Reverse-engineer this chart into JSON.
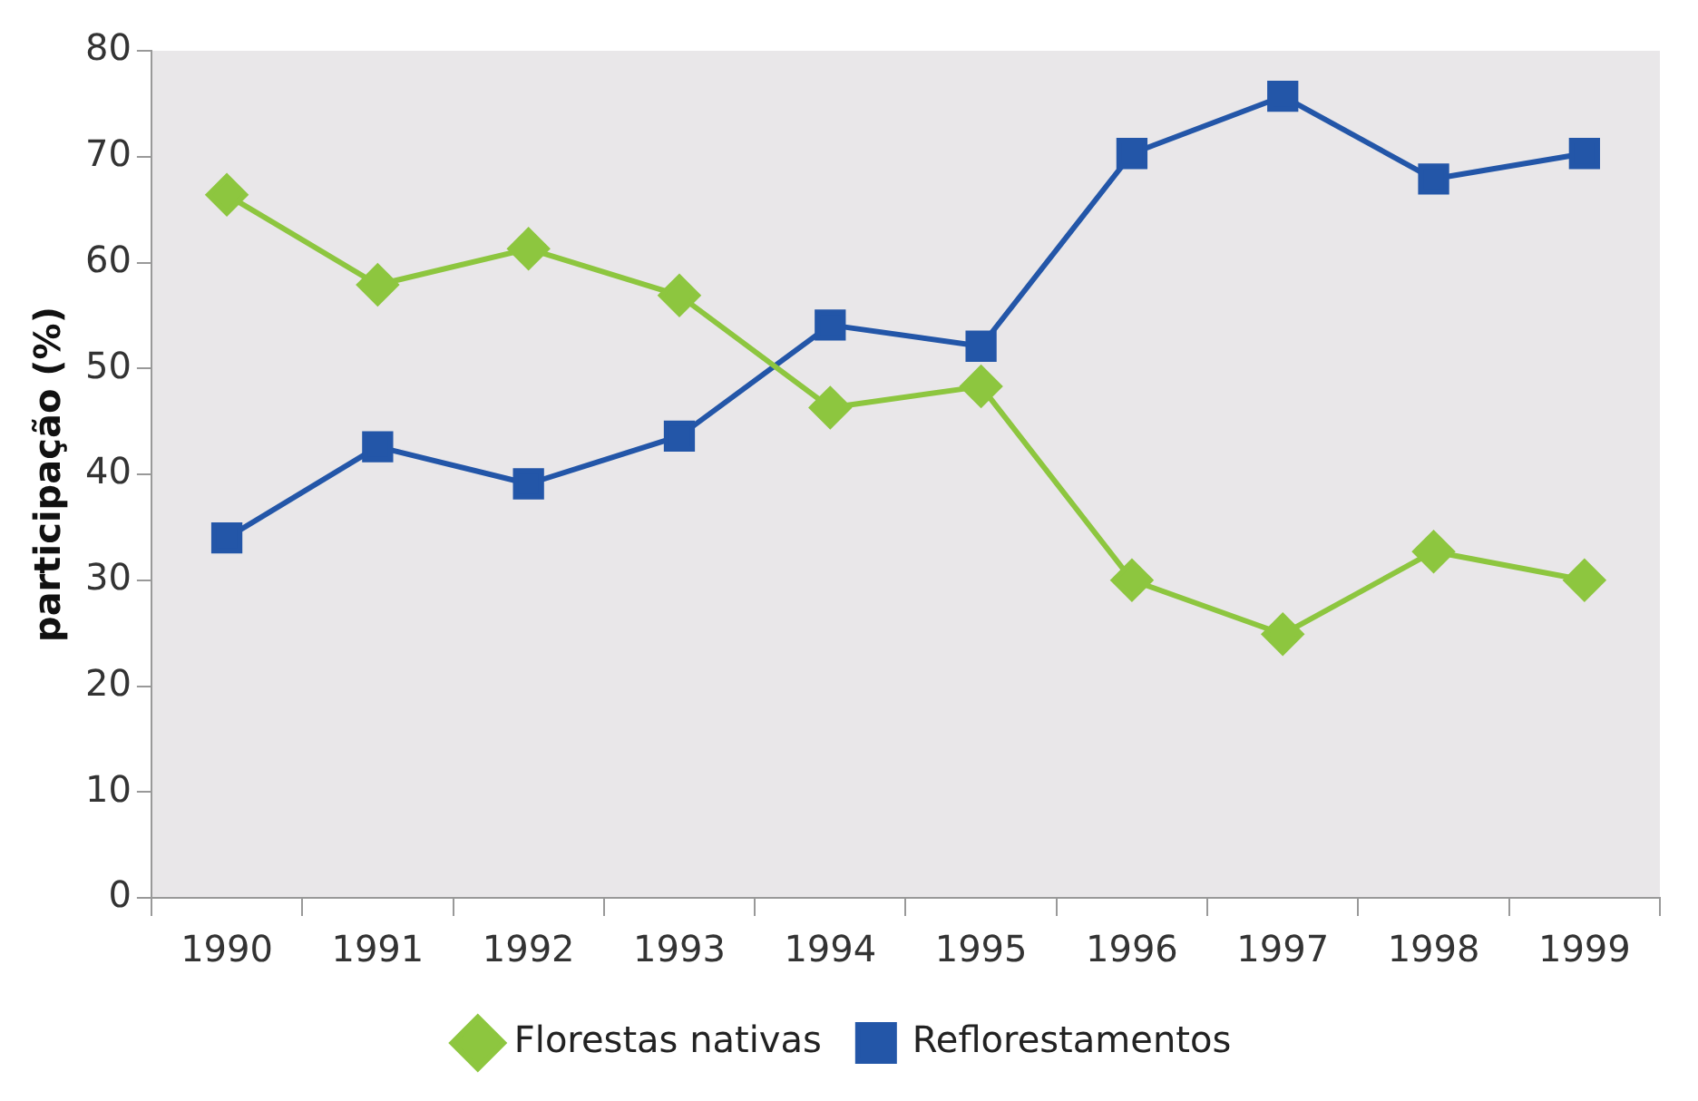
{
  "chart_data": {
    "type": "line",
    "ylabel": "participação (%)",
    "categories": [
      "1990",
      "1991",
      "1992",
      "1993",
      "1994",
      "1995",
      "1996",
      "1997",
      "1998",
      "1999"
    ],
    "ylim": [
      0,
      80
    ],
    "yticks": [
      0,
      10,
      20,
      30,
      40,
      50,
      60,
      70,
      80
    ],
    "grid": false,
    "legend": "bottom",
    "line_style": "solid",
    "series": [
      {
        "name": "Florestas nativas",
        "color": "#8dc63f",
        "marker": "diamond",
        "values": [
          66.4,
          57.9,
          61.3,
          56.9,
          46.3,
          48.3,
          30.0,
          24.9,
          32.7,
          30.0
        ]
      },
      {
        "name": "Reflorestamentos",
        "color": "#2356a8",
        "marker": "square",
        "values": [
          34.0,
          42.6,
          39.1,
          43.6,
          54.1,
          52.1,
          70.3,
          75.7,
          67.9,
          70.3
        ]
      }
    ]
  }
}
